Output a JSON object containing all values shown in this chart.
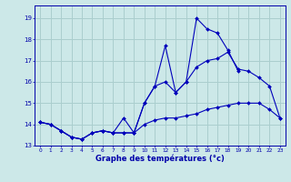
{
  "title": "Graphe des températures (°c)",
  "bg_color": "#cce8e8",
  "grid_color": "#aacece",
  "line_color": "#0000bb",
  "xlim": [
    -0.5,
    23.5
  ],
  "ylim": [
    13.0,
    19.6
  ],
  "xticks": [
    0,
    1,
    2,
    3,
    4,
    5,
    6,
    7,
    8,
    9,
    10,
    11,
    12,
    13,
    14,
    15,
    16,
    17,
    18,
    19,
    20,
    21,
    22,
    23
  ],
  "yticks": [
    13,
    14,
    15,
    16,
    17,
    18,
    19
  ],
  "hours": [
    0,
    1,
    2,
    3,
    4,
    5,
    6,
    7,
    8,
    9,
    10,
    11,
    12,
    13,
    14,
    15,
    16,
    17,
    18,
    19,
    20,
    21,
    22,
    23
  ],
  "line1": [
    14.1,
    14.0,
    13.7,
    13.4,
    13.3,
    13.6,
    13.7,
    13.6,
    14.3,
    13.6,
    15.0,
    15.8,
    17.7,
    15.5,
    16.0,
    19.0,
    18.5,
    18.3,
    17.5,
    16.5,
    null,
    null,
    null,
    null
  ],
  "line2": [
    14.1,
    14.0,
    13.7,
    13.4,
    13.3,
    13.6,
    13.7,
    13.6,
    13.6,
    13.6,
    15.0,
    15.8,
    16.0,
    15.5,
    16.0,
    16.7,
    17.0,
    17.1,
    17.4,
    16.6,
    16.5,
    16.2,
    15.8,
    14.3
  ],
  "line3": [
    14.1,
    14.0,
    13.7,
    13.4,
    13.3,
    13.6,
    13.7,
    13.6,
    13.6,
    13.6,
    14.0,
    14.2,
    14.3,
    14.3,
    14.4,
    14.5,
    14.7,
    14.8,
    14.9,
    15.0,
    15.0,
    15.0,
    14.7,
    14.3
  ]
}
